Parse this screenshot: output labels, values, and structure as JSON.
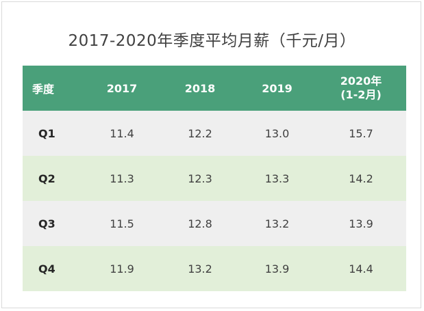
{
  "chart_data": {
    "type": "table",
    "title": "2017-2020年季度平均月薪（千元/月）",
    "header": {
      "quarter": "季度",
      "y2017": "2017",
      "y2018": "2018",
      "y2019": "2019",
      "y2020_line1": "2020年",
      "y2020_line2": "(1-2月)"
    },
    "rows": [
      {
        "quarter": "Q1",
        "values": [
          "11.4",
          "12.2",
          "13.0",
          "15.7"
        ]
      },
      {
        "quarter": "Q2",
        "values": [
          "11.3",
          "12.3",
          "13.3",
          "14.2"
        ]
      },
      {
        "quarter": "Q3",
        "values": [
          "11.5",
          "12.8",
          "13.2",
          "13.9"
        ]
      },
      {
        "quarter": "Q4",
        "values": [
          "11.9",
          "13.2",
          "13.9",
          "14.4"
        ]
      }
    ],
    "colors": {
      "header_bg": "#4aa07a",
      "row_odd": "#efefef",
      "row_even": "#e2efd9",
      "text": "#404040"
    }
  }
}
